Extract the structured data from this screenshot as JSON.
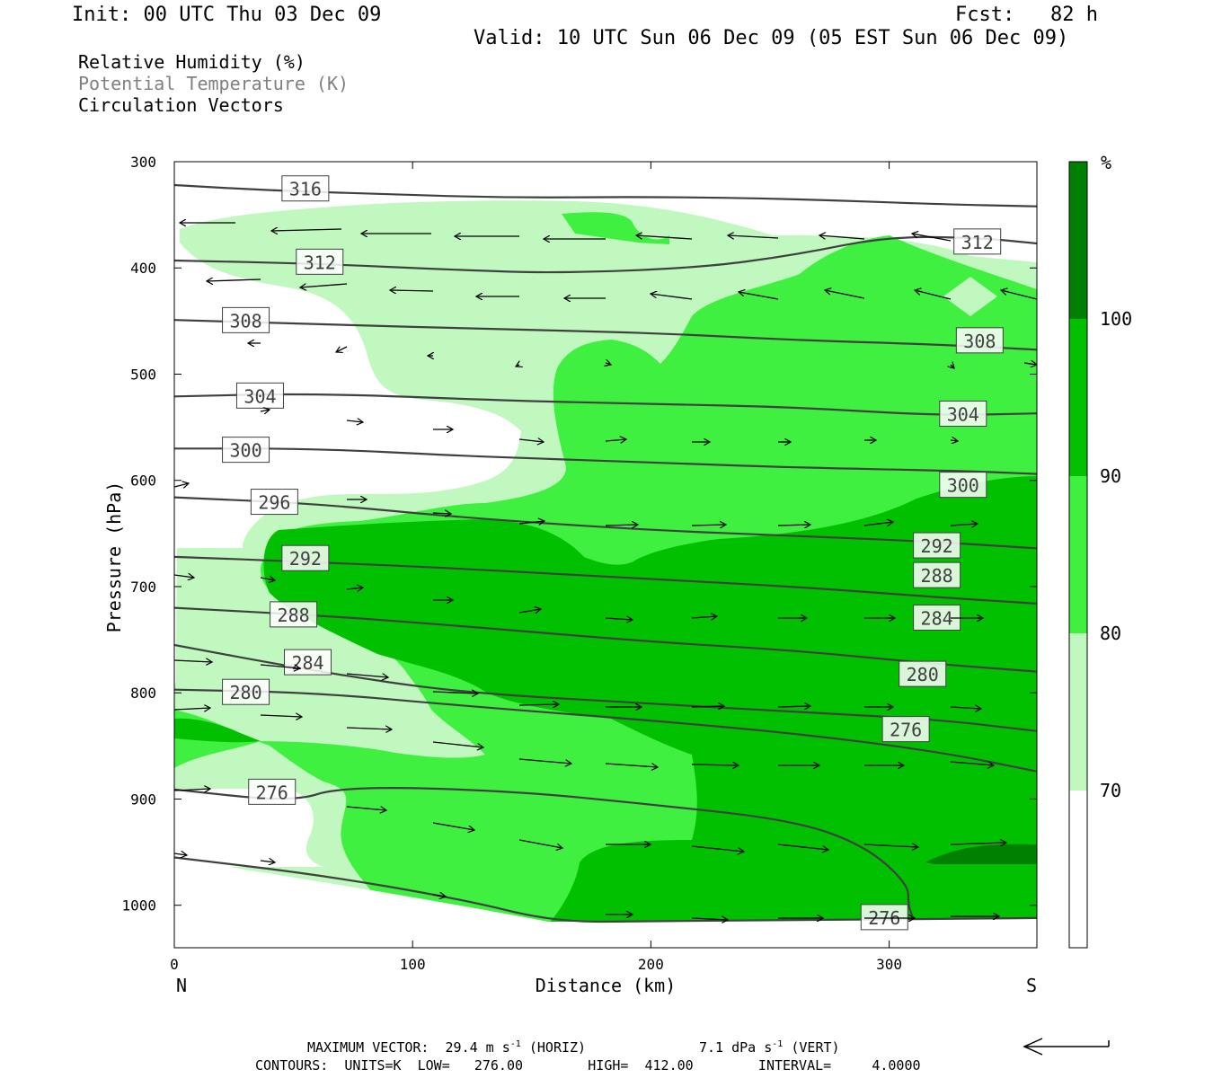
{
  "header": {
    "init": "Init: 00 UTC Thu 03 Dec 09",
    "fcst": "Fcst:   82 h",
    "valid": "Valid: 10 UTC Sun 06 Dec 09 (05 EST Sun 06 Dec 09)",
    "legend_lines": [
      {
        "text": "Relative Humidity (%)",
        "color": "#000000"
      },
      {
        "text": "Potential Temperature (K)",
        "color": "#808080"
      },
      {
        "text": "Circulation Vectors",
        "color": "#000000"
      }
    ]
  },
  "colors": {
    "rh_70_80": "#c0f8c0",
    "rh_80_90": "#40f040",
    "rh_90_100": "#00c000",
    "rh_100": "#008000",
    "contour": "#404040"
  },
  "chart_data": {
    "type": "cross-section",
    "xlabel": "Distance (km)",
    "ylabel": "Pressure (hPa)",
    "x_ticks": [
      0,
      100,
      200,
      300
    ],
    "y_ticks": [
      300,
      400,
      500,
      600,
      700,
      800,
      900,
      1000
    ],
    "xlim": [
      0,
      362
    ],
    "ylim": [
      300,
      1040
    ],
    "x_end_labels": {
      "left": "N",
      "right": "S"
    },
    "colorbar": {
      "unit": "%",
      "levels": [
        70,
        80,
        90,
        100
      ]
    },
    "theta_contours": [
      {
        "value": 316,
        "points": [
          [
            0,
            322
          ],
          [
            40,
            327
          ],
          [
            80,
            330
          ],
          [
            140,
            334
          ],
          [
            200,
            333
          ],
          [
            260,
            335
          ],
          [
            320,
            340
          ],
          [
            362,
            342
          ]
        ],
        "labels": [
          [
            55,
            326
          ]
        ]
      },
      {
        "value": 312,
        "points": [
          [
            0,
            393
          ],
          [
            60,
            396
          ],
          [
            120,
            402
          ],
          [
            160,
            405
          ],
          [
            220,
            400
          ],
          [
            260,
            388
          ],
          [
            300,
            370
          ],
          [
            340,
            372
          ],
          [
            362,
            377
          ]
        ],
        "labels": [
          [
            61,
            395
          ],
          [
            337,
            376
          ]
        ]
      },
      {
        "value": 308,
        "points": [
          [
            0,
            449
          ],
          [
            60,
            453
          ],
          [
            140,
            458
          ],
          [
            200,
            461
          ],
          [
            260,
            468
          ],
          [
            320,
            472
          ],
          [
            362,
            477
          ]
        ],
        "labels": [
          [
            30,
            450
          ],
          [
            338,
            469
          ]
        ]
      },
      {
        "value": 304,
        "points": [
          [
            0,
            521
          ],
          [
            60,
            518
          ],
          [
            140,
            525
          ],
          [
            200,
            528
          ],
          [
            260,
            531
          ],
          [
            320,
            539
          ],
          [
            362,
            537
          ]
        ],
        "labels": [
          [
            36,
            521
          ],
          [
            331,
            538
          ]
        ]
      },
      {
        "value": 300,
        "points": [
          [
            0,
            570
          ],
          [
            60,
            570
          ],
          [
            120,
            577
          ],
          [
            200,
            583
          ],
          [
            260,
            588
          ],
          [
            330,
            591
          ],
          [
            362,
            594
          ]
        ],
        "labels": [
          [
            30,
            572
          ],
          [
            331,
            605
          ]
        ]
      },
      {
        "value": 296,
        "points": [
          [
            0,
            616
          ],
          [
            60,
            622
          ],
          [
            120,
            635
          ],
          [
            200,
            647
          ],
          [
            260,
            652
          ],
          [
            320,
            658
          ],
          [
            362,
            664
          ]
        ],
        "labels": [
          [
            42,
            621
          ]
        ]
      },
      {
        "value": 292,
        "points": [
          [
            0,
            672
          ],
          [
            60,
            677
          ],
          [
            120,
            683
          ],
          [
            200,
            693
          ],
          [
            260,
            700
          ],
          [
            320,
            710
          ],
          [
            362,
            716
          ]
        ],
        "labels": [
          [
            55,
            674
          ],
          [
            320,
            662
          ]
        ]
      },
      {
        "value": 288,
        "points": [
          [
            0,
            720
          ],
          [
            60,
            727
          ],
          [
            120,
            737
          ],
          [
            200,
            752
          ],
          [
            260,
            760
          ],
          [
            320,
            773
          ],
          [
            362,
            780
          ]
        ],
        "labels": [
          [
            50,
            727
          ],
          [
            320,
            690
          ]
        ]
      },
      {
        "value": 284,
        "points": [
          [
            0,
            755
          ],
          [
            60,
            780
          ],
          [
            120,
            800
          ],
          [
            200,
            810
          ],
          [
            260,
            818
          ],
          [
            320,
            825
          ],
          [
            362,
            836
          ]
        ],
        "labels": [
          [
            56,
            772
          ],
          [
            320,
            730
          ]
        ]
      },
      {
        "value": 280,
        "points": [
          [
            0,
            797
          ],
          [
            60,
            800
          ],
          [
            120,
            812
          ],
          [
            200,
            826
          ],
          [
            260,
            838
          ],
          [
            320,
            855
          ],
          [
            362,
            874
          ]
        ],
        "labels": [
          [
            30,
            800
          ],
          [
            314,
            783
          ]
        ]
      },
      {
        "value": 276,
        "points": [
          [
            0,
            891
          ],
          [
            50,
            903
          ],
          [
            70,
            888
          ],
          [
            140,
            892
          ],
          [
            200,
            905
          ],
          [
            260,
            920
          ],
          [
            290,
            944
          ],
          [
            308,
            980
          ],
          [
            308,
            1000
          ],
          [
            310,
            1012
          ]
        ],
        "labels": [
          [
            41,
            894
          ],
          [
            307,
            835
          ]
        ]
      },
      {
        "value": 276,
        "points": [
          [
            0,
            955
          ],
          [
            60,
            971
          ],
          [
            120,
            994
          ],
          [
            160,
            1016
          ],
          [
            200,
            1015
          ],
          [
            260,
            1014
          ],
          [
            362,
            1012
          ]
        ],
        "labels": [
          [
            298,
            1012
          ]
        ]
      }
    ],
    "vector_scale": {
      "max_horiz": "29.4 m s",
      "max_vert": "7.1 dPa s"
    }
  },
  "footer": {
    "maxvec_label": "MAXIMUM VECTOR:",
    "maxvec_horiz": "29.4 m s",
    "horiz_tag": "(HORIZ)",
    "maxvec_vert": "7.1 dPa s",
    "vert_tag": "(VERT)",
    "exp": "-1",
    "contours_line": "CONTOURS:  UNITS=K  LOW=   276.00        HIGH=  412.00        INTERVAL=     4.0000"
  }
}
